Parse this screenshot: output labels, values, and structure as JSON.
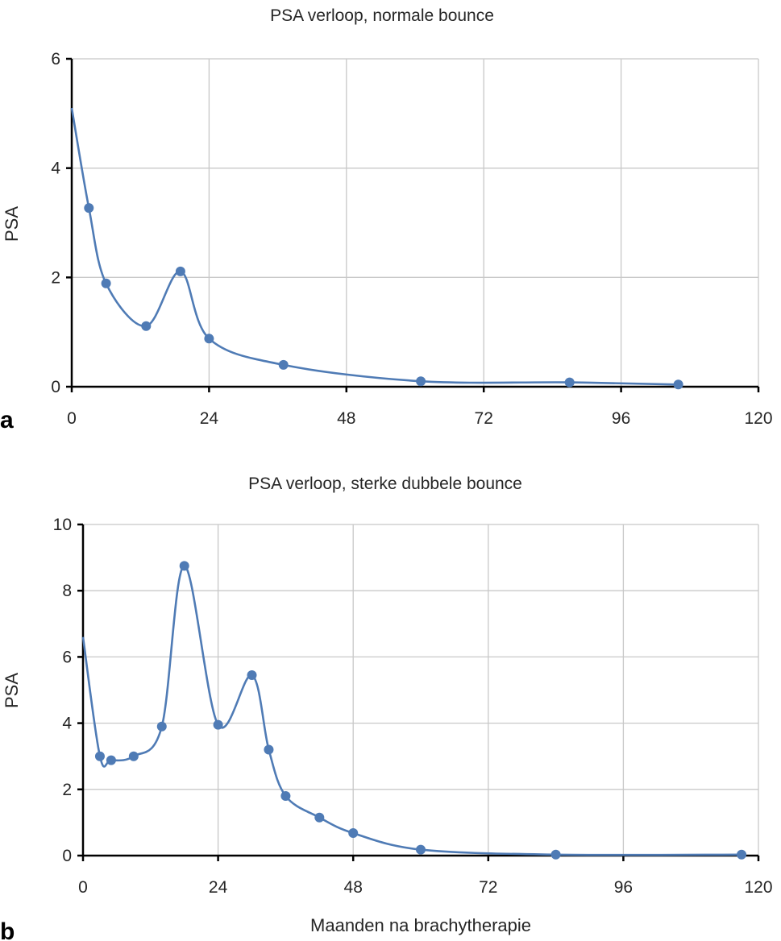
{
  "colors": {
    "series": "#4f7bb5",
    "grid": "#c8c8c8",
    "axis": "#000000"
  },
  "chart_data": [
    {
      "type": "line",
      "panel_label": "a",
      "title": "PSA verloop, normale bounce",
      "xlabel": "",
      "ylabel": "PSA",
      "xlim": [
        0,
        120
      ],
      "ylim": [
        0,
        6
      ],
      "xticks": [
        0,
        24,
        48,
        72,
        96,
        120
      ],
      "yticks": [
        0,
        2,
        4,
        6
      ],
      "grid": true,
      "smooth": true,
      "start": {
        "x": 0,
        "y": 5.1
      },
      "x": [
        3,
        6,
        13,
        19,
        24,
        37,
        61,
        87,
        106
      ],
      "y": [
        3.27,
        1.89,
        1.11,
        2.11,
        0.88,
        0.4,
        0.1,
        0.08,
        0.04
      ]
    },
    {
      "type": "line",
      "panel_label": "b",
      "title": "PSA verloop, sterke dubbele bounce",
      "xlabel": "Maanden na brachytherapie",
      "ylabel": "PSA",
      "xlim": [
        0,
        120
      ],
      "ylim": [
        0,
        10
      ],
      "xticks": [
        0,
        24,
        48,
        72,
        96,
        120
      ],
      "yticks": [
        0,
        2,
        4,
        6,
        8,
        10
      ],
      "grid": true,
      "smooth": true,
      "start": {
        "x": 0,
        "y": 6.6
      },
      "x": [
        3,
        5,
        9,
        14,
        18,
        24,
        30,
        33,
        36,
        42,
        48,
        60,
        84,
        117
      ],
      "y": [
        3.0,
        2.88,
        3.0,
        3.9,
        8.75,
        3.95,
        5.45,
        3.2,
        1.8,
        1.15,
        0.68,
        0.18,
        0.03,
        0.03
      ]
    }
  ]
}
